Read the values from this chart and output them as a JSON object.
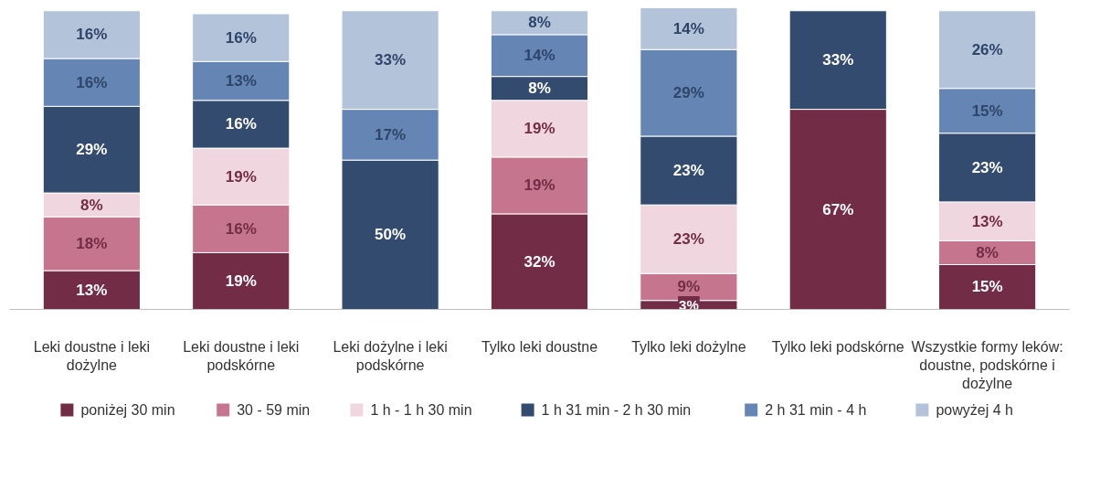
{
  "chart_data": {
    "type": "bar",
    "stacked": true,
    "categories": [
      "Leki doustne i leki dożylne",
      "Leki doustne i leki podskórne",
      "Leki dożylne i leki podskórne",
      "Tylko leki doustne",
      "Tylko leki dożylne",
      "Tylko leki podskórne",
      "Wszystkie formy leków: doustne, podskórne i dożylne"
    ],
    "ylim": [
      0,
      101
    ],
    "tick_labels": "x",
    "legend": "bottom",
    "series": [
      {
        "name": "poniżej 30 min",
        "color": "#722c45",
        "values": [
          13,
          19,
          null,
          32,
          3,
          67,
          15
        ],
        "value_labels": [
          "13%",
          "19%",
          null,
          "32%",
          "3%",
          "67%",
          "15%"
        ]
      },
      {
        "name": "30 - 59 min",
        "color": "#c5768e",
        "values": [
          18,
          16,
          null,
          19,
          9,
          null,
          8
        ],
        "value_labels": [
          "18%",
          "16%",
          null,
          "19%",
          "9%",
          null,
          "8%"
        ]
      },
      {
        "name": "1 h - 1 h 30 min",
        "color": "#f0d6de",
        "values": [
          8,
          19,
          null,
          19,
          23,
          null,
          13
        ],
        "value_labels": [
          "8%",
          "19%",
          null,
          "19%",
          "23%",
          null,
          "13%"
        ]
      },
      {
        "name": "1 h 31 min - 2 h 30 min",
        "color": "#324b6e",
        "values": [
          29,
          16,
          50,
          8,
          23,
          33,
          23
        ],
        "value_labels": [
          "29%",
          "16%",
          "50%",
          "8%",
          "23%",
          "33%",
          "23%"
        ]
      },
      {
        "name": "2 h 31 min - 4 h",
        "color": "#6586b5",
        "values": [
          16,
          13,
          17,
          14,
          29,
          null,
          15
        ],
        "value_labels": [
          "16%",
          "13%",
          "17%",
          "14%",
          "29%",
          null,
          "15%"
        ]
      },
      {
        "name": "powyżej 4 h",
        "color": "#b3c3da",
        "values": [
          16,
          16,
          33,
          8,
          14,
          null,
          26
        ],
        "value_labels": [
          "16%",
          "16%",
          "33%",
          "8%",
          "14%",
          null,
          "26%"
        ]
      }
    ]
  }
}
